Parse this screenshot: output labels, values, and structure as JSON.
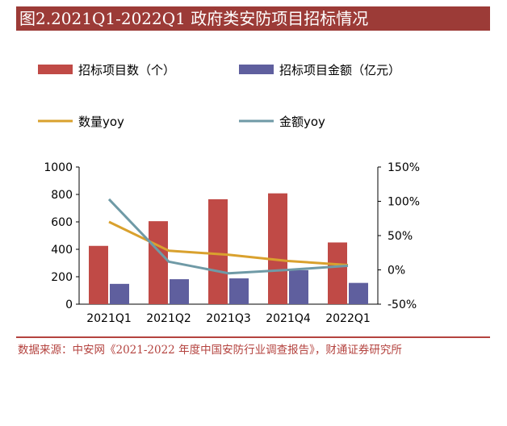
{
  "header": {
    "title": "图2.2021Q1-2022Q1 政府类安防项目招标情况"
  },
  "footer": {
    "source": "数据来源：中安网《2021-2022 年度中国安防行业调查报告》，财通证券研究所"
  },
  "colors": {
    "title_bg": "#9c3b37",
    "bar_count": "#c04a46",
    "bar_amount": "#5f5f9e",
    "line_count_yoy": "#d9a12e",
    "line_amount_yoy": "#6f9aa6",
    "source_text": "#b4433f"
  },
  "chart_data": {
    "type": "bar",
    "categories": [
      "2021Q1",
      "2021Q2",
      "2021Q3",
      "2021Q4",
      "2022Q1"
    ],
    "series": [
      {
        "name": "招标项目数（个）",
        "kind": "bar",
        "axis": "left",
        "values": [
          425,
          605,
          765,
          808,
          450
        ]
      },
      {
        "name": "招标项目金额（亿元）",
        "kind": "bar",
        "axis": "left",
        "values": [
          148,
          182,
          188,
          248,
          155
        ]
      },
      {
        "name": "数量yoy",
        "kind": "line",
        "axis": "right",
        "values": [
          70,
          28,
          22,
          13,
          7
        ]
      },
      {
        "name": "金额yoy",
        "kind": "line",
        "axis": "right",
        "values": [
          103,
          12,
          -5,
          0,
          6
        ]
      }
    ],
    "ylim_left": [
      0,
      1000
    ],
    "yticks_left": [
      0,
      200,
      400,
      600,
      800,
      1000
    ],
    "ylim_right": [
      -50,
      150
    ],
    "yticks_right": [
      "-50%",
      "0%",
      "50%",
      "100%",
      "150%"
    ],
    "yticks_right_values": [
      -50,
      0,
      50,
      100,
      150
    ],
    "grid": false,
    "legend": "top"
  }
}
